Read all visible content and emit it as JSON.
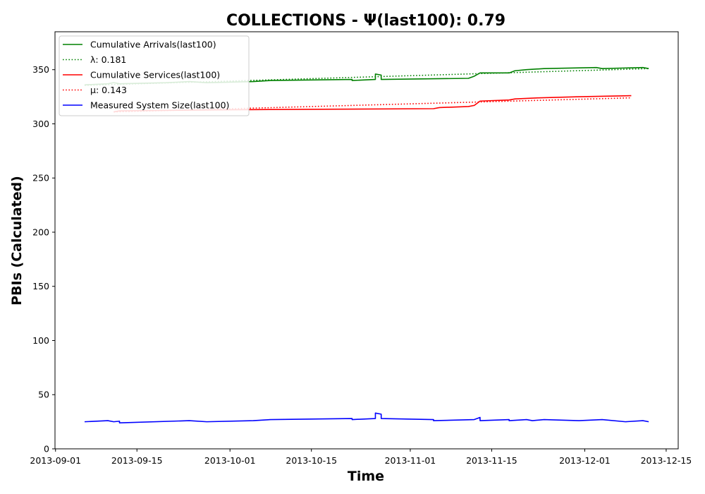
{
  "chart_data": {
    "type": "line",
    "title": "COLLECTIONS -  Ψ(last100): 0.79",
    "xlabel": "Time",
    "ylabel": "PBIs (Calculated)",
    "x_scale": "date",
    "xlim": [
      "2013-09-01",
      "2013-12-17"
    ],
    "ylim": [
      0,
      385
    ],
    "x_ticks": [
      "2013-09-01",
      "2013-09-15",
      "2013-10-01",
      "2013-10-15",
      "2013-11-01",
      "2013-11-15",
      "2013-12-01",
      "2013-12-15"
    ],
    "y_ticks": [
      0,
      50,
      100,
      150,
      200,
      250,
      300,
      350
    ],
    "grid": false,
    "legend_position": "upper-left",
    "series": [
      {
        "name": "Cumulative Arrivals(last100)",
        "color": "#008000",
        "style": "solid",
        "points": [
          [
            "2013-09-06",
            336
          ],
          [
            "2013-09-10",
            337
          ],
          [
            "2013-09-11",
            338
          ],
          [
            "2013-09-12",
            337
          ],
          [
            "2013-09-20",
            338
          ],
          [
            "2013-09-24",
            339
          ],
          [
            "2013-09-27",
            338
          ],
          [
            "2013-10-05",
            339
          ],
          [
            "2013-10-08",
            340
          ],
          [
            "2013-10-22",
            341
          ],
          [
            "2013-10-22",
            340
          ],
          [
            "2013-10-26",
            341
          ],
          [
            "2013-10-26",
            346
          ],
          [
            "2013-10-27",
            345
          ],
          [
            "2013-10-27",
            341
          ],
          [
            "2013-11-11",
            342
          ],
          [
            "2013-11-12",
            344
          ],
          [
            "2013-11-13",
            347
          ],
          [
            "2013-11-18",
            347
          ],
          [
            "2013-11-19",
            349
          ],
          [
            "2013-11-21",
            350
          ],
          [
            "2013-11-24",
            351
          ],
          [
            "2013-12-03",
            352
          ],
          [
            "2013-12-04",
            351
          ],
          [
            "2013-12-11",
            352
          ],
          [
            "2013-12-12",
            351
          ]
        ]
      },
      {
        "name": "λ: 0.181",
        "color": "#008000",
        "style": "dotted",
        "points": [
          [
            "2013-09-06",
            335.5
          ],
          [
            "2013-12-12",
            351
          ]
        ]
      },
      {
        "name": "Cumulative Services(last100)",
        "color": "#ff0000",
        "style": "solid",
        "points": [
          [
            "2013-09-11",
            311
          ],
          [
            "2013-09-12",
            312
          ],
          [
            "2013-10-01",
            313
          ],
          [
            "2013-11-05",
            314
          ],
          [
            "2013-11-06",
            315
          ],
          [
            "2013-11-11",
            316
          ],
          [
            "2013-11-12",
            317
          ],
          [
            "2013-11-13",
            321
          ],
          [
            "2013-11-18",
            322
          ],
          [
            "2013-11-19",
            323
          ],
          [
            "2013-11-23",
            324
          ],
          [
            "2013-11-30",
            325
          ],
          [
            "2013-12-09",
            326
          ]
        ]
      },
      {
        "name": "μ: 0.143",
        "color": "#ff0000",
        "style": "dotted",
        "points": [
          [
            "2013-09-11",
            311
          ],
          [
            "2013-12-09",
            324
          ]
        ]
      },
      {
        "name": "Measured System Size(last100)",
        "color": "#0000ff",
        "style": "solid",
        "points": [
          [
            "2013-09-06",
            25
          ],
          [
            "2013-09-10",
            26
          ],
          [
            "2013-09-11",
            25
          ],
          [
            "2013-09-12",
            25.5
          ],
          [
            "2013-09-12",
            24
          ],
          [
            "2013-09-24",
            26
          ],
          [
            "2013-09-27",
            25
          ],
          [
            "2013-10-05",
            26
          ],
          [
            "2013-10-08",
            27
          ],
          [
            "2013-10-22",
            28
          ],
          [
            "2013-10-22",
            27
          ],
          [
            "2013-10-26",
            28
          ],
          [
            "2013-10-26",
            33
          ],
          [
            "2013-10-27",
            32
          ],
          [
            "2013-10-27",
            28
          ],
          [
            "2013-11-05",
            27
          ],
          [
            "2013-11-05",
            26
          ],
          [
            "2013-11-12",
            27
          ],
          [
            "2013-11-13",
            29
          ],
          [
            "2013-11-13",
            26
          ],
          [
            "2013-11-18",
            27
          ],
          [
            "2013-11-18",
            26
          ],
          [
            "2013-11-21",
            27
          ],
          [
            "2013-11-22",
            26
          ],
          [
            "2013-11-24",
            27
          ],
          [
            "2013-11-30",
            26
          ],
          [
            "2013-12-04",
            27
          ],
          [
            "2013-12-08",
            25
          ],
          [
            "2013-12-11",
            26
          ],
          [
            "2013-12-12",
            25
          ]
        ]
      }
    ]
  }
}
